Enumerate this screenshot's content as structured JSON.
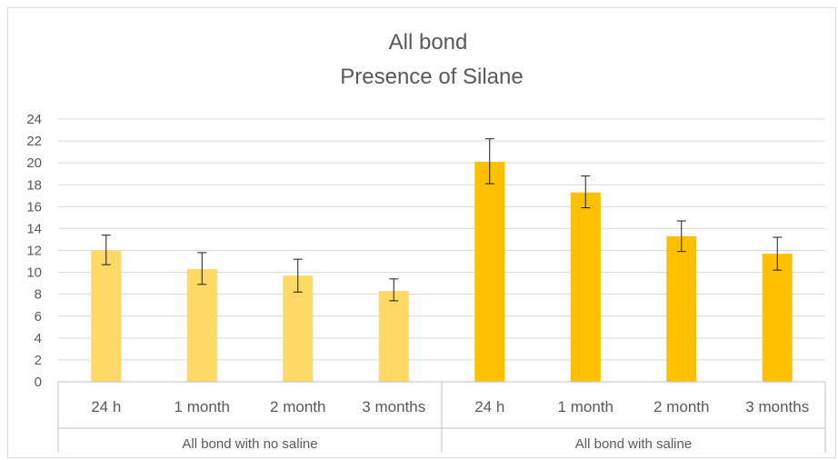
{
  "chart_data": {
    "type": "bar",
    "title": "All bond",
    "subtitle": "Presence of Silane",
    "xlabel": "",
    "ylabel": "",
    "ylim": [
      0,
      24
    ],
    "yticks": [
      0,
      2,
      4,
      6,
      8,
      10,
      12,
      14,
      16,
      18,
      20,
      22,
      24
    ],
    "grid": true,
    "groups": [
      {
        "label": "All bond with no saline",
        "color": "#FFD966",
        "categories": [
          "24 h",
          "1 month",
          "2 month",
          "3 months"
        ],
        "values": [
          12.0,
          10.3,
          9.7,
          8.3
        ],
        "error_low": [
          10.7,
          8.9,
          8.2,
          7.4
        ],
        "error_high": [
          13.4,
          11.8,
          11.2,
          9.4
        ]
      },
      {
        "label": "All bond with saline",
        "color": "#FFC000",
        "categories": [
          "24 h",
          "1 month",
          "2 month",
          "3 months"
        ],
        "values": [
          20.1,
          17.3,
          13.3,
          11.7
        ],
        "error_low": [
          18.1,
          15.9,
          11.9,
          10.2
        ],
        "error_high": [
          22.2,
          18.8,
          14.7,
          13.2
        ]
      }
    ]
  }
}
